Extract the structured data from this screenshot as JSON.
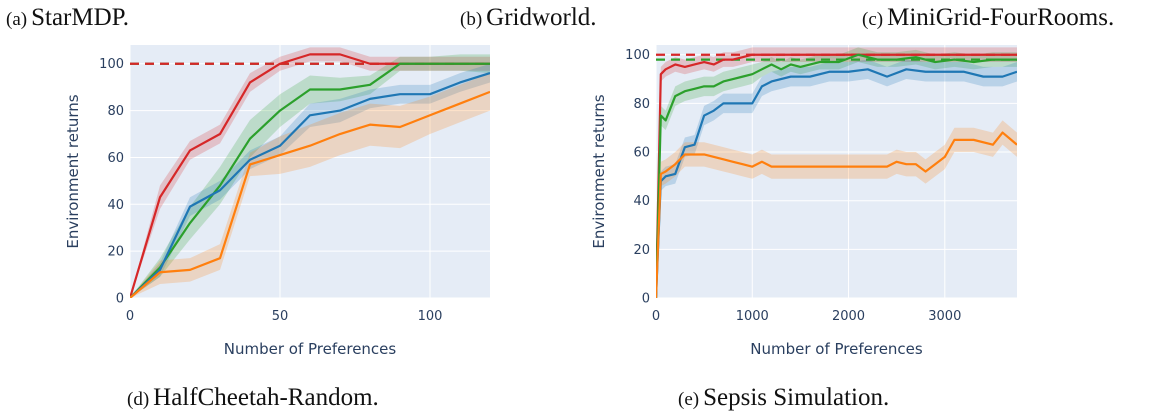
{
  "captions": {
    "a": {
      "label": "(a)",
      "text": "StarMDP."
    },
    "b": {
      "label": "(b)",
      "text": "Gridworld."
    },
    "c": {
      "label": "(c)",
      "text": "MiniGrid-FourRooms."
    },
    "d": {
      "label": "(d)",
      "text": "HalfCheetah-Random."
    },
    "e": {
      "label": "(e)",
      "text": "Sepsis Simulation."
    }
  },
  "colors": {
    "plot_bg": "#e5ecf6",
    "grid": "#ffffff",
    "axis_text": "#2a3f5f",
    "red": "#d62728",
    "green": "#2ca02c",
    "blue": "#1f77b4",
    "orange": "#ff7f0e"
  },
  "chart_data": [
    {
      "type": "line",
      "title": "HalfCheetah-Random.",
      "xlabel": "Number of Preferences",
      "ylabel": "Environment returns",
      "xlim": [
        0,
        120
      ],
      "ylim": [
        0,
        108
      ],
      "xticks": [
        0,
        50,
        100
      ],
      "yticks": [
        0,
        20,
        40,
        60,
        80,
        100
      ],
      "grid": true,
      "reference_lines": [
        {
          "y": 100,
          "color": "#2ca02c",
          "dash": true
        },
        {
          "y": 100,
          "color": "#d62728",
          "dash": true
        }
      ],
      "series": [
        {
          "name": "red",
          "color": "#d62728",
          "x": [
            0,
            10,
            20,
            30,
            40,
            50,
            60,
            70,
            80,
            90,
            100,
            110,
            120
          ],
          "y": [
            0,
            43,
            63,
            70,
            92,
            100,
            104,
            104,
            100,
            100,
            100,
            100,
            100
          ],
          "band": [
            [
              0,
              0
            ],
            [
              38,
              48
            ],
            [
              59,
              67
            ],
            [
              66,
              74
            ],
            [
              88,
              96
            ],
            [
              97,
              103
            ],
            [
              101,
              107
            ],
            [
              101,
              107
            ],
            [
              97,
              103
            ],
            [
              97,
              103
            ],
            [
              97,
              103
            ],
            [
              97,
              103
            ],
            [
              97,
              103
            ]
          ]
        },
        {
          "name": "green",
          "color": "#2ca02c",
          "x": [
            0,
            10,
            20,
            30,
            40,
            50,
            60,
            70,
            80,
            90,
            100,
            110,
            120
          ],
          "y": [
            0,
            13,
            32,
            48,
            68,
            80,
            89,
            89,
            91,
            100,
            100,
            100,
            100
          ],
          "band": [
            [
              0,
              0
            ],
            [
              9,
              17
            ],
            [
              25,
              39
            ],
            [
              40,
              56
            ],
            [
              60,
              76
            ],
            [
              73,
              87
            ],
            [
              83,
              95
            ],
            [
              84,
              94
            ],
            [
              87,
              95
            ],
            [
              97,
              103
            ],
            [
              97,
              103
            ],
            [
              97,
              104
            ],
            [
              96,
              104
            ]
          ]
        },
        {
          "name": "blue",
          "color": "#1f77b4",
          "x": [
            0,
            10,
            20,
            30,
            40,
            50,
            60,
            70,
            80,
            90,
            100,
            110,
            120
          ],
          "y": [
            0,
            12,
            39,
            46,
            59,
            65,
            78,
            80,
            85,
            87,
            87,
            92,
            96
          ],
          "band": [
            [
              0,
              0
            ],
            [
              9,
              15
            ],
            [
              35,
              43
            ],
            [
              42,
              50
            ],
            [
              55,
              63
            ],
            [
              61,
              69
            ],
            [
              73,
              83
            ],
            [
              75,
              85
            ],
            [
              81,
              89
            ],
            [
              83,
              91
            ],
            [
              83,
              91
            ],
            [
              88,
              96
            ],
            [
              92,
              100
            ]
          ]
        },
        {
          "name": "orange",
          "color": "#ff7f0e",
          "x": [
            0,
            10,
            20,
            30,
            40,
            50,
            60,
            70,
            80,
            90,
            100,
            110,
            120
          ],
          "y": [
            0,
            11,
            12,
            17,
            57,
            61,
            65,
            70,
            74,
            73,
            78,
            83,
            88
          ],
          "band": [
            [
              0,
              0
            ],
            [
              6,
              16
            ],
            [
              7,
              17
            ],
            [
              12,
              23
            ],
            [
              52,
              62
            ],
            [
              53,
              69
            ],
            [
              56,
              74
            ],
            [
              61,
              79
            ],
            [
              65,
              83
            ],
            [
              64,
              82
            ],
            [
              70,
              86
            ],
            [
              75,
              91
            ],
            [
              80,
              96
            ]
          ]
        }
      ]
    },
    {
      "type": "line",
      "title": "Sepsis Simulation.",
      "xlabel": "Number of Preferences",
      "ylabel": "Environment returns",
      "xlim": [
        0,
        3750
      ],
      "ylim": [
        0,
        104
      ],
      "xticks": [
        0,
        1000,
        2000,
        3000
      ],
      "yticks": [
        0,
        20,
        40,
        60,
        80,
        100
      ],
      "grid": true,
      "reference_lines": [
        {
          "y": 100,
          "color": "#d62728",
          "dash": true
        },
        {
          "y": 98,
          "color": "#2ca02c",
          "dash": true
        }
      ],
      "series": [
        {
          "name": "red",
          "color": "#d62728",
          "x": [
            0,
            50,
            100,
            200,
            300,
            400,
            500,
            600,
            700,
            800,
            900,
            1000,
            1500,
            2000,
            2500,
            3000,
            3500,
            3750
          ],
          "y": [
            0,
            92,
            94,
            96,
            95,
            96,
            97,
            96,
            98,
            98,
            99,
            100,
            100,
            100,
            100,
            100,
            100,
            100
          ],
          "band": [
            [
              0,
              0
            ],
            [
              89,
              95
            ],
            [
              91,
              97
            ],
            [
              93,
              99
            ],
            [
              92,
              98
            ],
            [
              93,
              99
            ],
            [
              94,
              100
            ],
            [
              93,
              99
            ],
            [
              95,
              101
            ],
            [
              95,
              101
            ],
            [
              96,
              102
            ],
            [
              97,
              103
            ],
            [
              97,
              103
            ],
            [
              97,
              103
            ],
            [
              97,
              103
            ],
            [
              97,
              103
            ],
            [
              97,
              103
            ],
            [
              97,
              103
            ]
          ]
        },
        {
          "name": "green",
          "color": "#2ca02c",
          "x": [
            0,
            50,
            100,
            200,
            300,
            400,
            500,
            600,
            700,
            800,
            900,
            1000,
            1100,
            1200,
            1300,
            1400,
            1500,
            1700,
            1900,
            2100,
            2300,
            2500,
            2700,
            2900,
            3100,
            3300,
            3500,
            3750
          ],
          "y": [
            0,
            75,
            73,
            83,
            85,
            86,
            87,
            87,
            89,
            90,
            91,
            92,
            94,
            96,
            94,
            96,
            95,
            97,
            97,
            100,
            98,
            98,
            99,
            97,
            98,
            97,
            98,
            98
          ],
          "band": [
            [
              0,
              0
            ],
            [
              71,
              79
            ],
            [
              69,
              77
            ],
            [
              79,
              87
            ],
            [
              81,
              89
            ],
            [
              82,
              90
            ],
            [
              83,
              91
            ],
            [
              83,
              91
            ],
            [
              85,
              93
            ],
            [
              86,
              94
            ],
            [
              87,
              95
            ],
            [
              88,
              96
            ],
            [
              91,
              97
            ],
            [
              93,
              99
            ],
            [
              91,
              97
            ],
            [
              93,
              99
            ],
            [
              92,
              98
            ],
            [
              94,
              100
            ],
            [
              94,
              100
            ],
            [
              97,
              103
            ],
            [
              95,
              101
            ],
            [
              95,
              101
            ],
            [
              96,
              102
            ],
            [
              94,
              100
            ],
            [
              95,
              101
            ],
            [
              94,
              100
            ],
            [
              95,
              101
            ],
            [
              95,
              101
            ]
          ]
        },
        {
          "name": "blue",
          "color": "#1f77b4",
          "x": [
            0,
            50,
            100,
            200,
            300,
            400,
            500,
            600,
            700,
            800,
            900,
            1000,
            1100,
            1200,
            1400,
            1600,
            1800,
            2000,
            2200,
            2400,
            2600,
            2800,
            3000,
            3200,
            3400,
            3600,
            3750
          ],
          "y": [
            0,
            48,
            50,
            51,
            62,
            63,
            75,
            77,
            80,
            80,
            80,
            80,
            87,
            89,
            91,
            91,
            93,
            93,
            94,
            91,
            94,
            93,
            93,
            93,
            91,
            91,
            93
          ],
          "band": [
            [
              0,
              0
            ],
            [
              44,
              52
            ],
            [
              46,
              54
            ],
            [
              47,
              55
            ],
            [
              58,
              66
            ],
            [
              59,
              67
            ],
            [
              71,
              79
            ],
            [
              73,
              81
            ],
            [
              76,
              84
            ],
            [
              76,
              84
            ],
            [
              76,
              84
            ],
            [
              76,
              84
            ],
            [
              83,
              91
            ],
            [
              85,
              93
            ],
            [
              87,
              95
            ],
            [
              87,
              95
            ],
            [
              89,
              97
            ],
            [
              89,
              97
            ],
            [
              90,
              98
            ],
            [
              87,
              95
            ],
            [
              90,
              98
            ],
            [
              89,
              97
            ],
            [
              89,
              97
            ],
            [
              89,
              97
            ],
            [
              87,
              95
            ],
            [
              87,
              95
            ],
            [
              89,
              97
            ]
          ]
        },
        {
          "name": "orange",
          "color": "#ff7f0e",
          "x": [
            0,
            50,
            100,
            200,
            300,
            500,
            700,
            800,
            900,
            1000,
            1100,
            1200,
            1500,
            2000,
            2400,
            2500,
            2600,
            2700,
            2800,
            2900,
            3000,
            3100,
            3300,
            3500,
            3600,
            3750
          ],
          "y": [
            0,
            51,
            52,
            55,
            59,
            59,
            57,
            56,
            55,
            54,
            56,
            54,
            54,
            54,
            54,
            56,
            55,
            55,
            52,
            55,
            58,
            65,
            65,
            63,
            68,
            63
          ],
          "band": [
            [
              0,
              0
            ],
            [
              46,
              56
            ],
            [
              47,
              57
            ],
            [
              50,
              60
            ],
            [
              54,
              64
            ],
            [
              54,
              64
            ],
            [
              52,
              62
            ],
            [
              51,
              61
            ],
            [
              50,
              60
            ],
            [
              49,
              59
            ],
            [
              51,
              61
            ],
            [
              49,
              59
            ],
            [
              49,
              59
            ],
            [
              49,
              59
            ],
            [
              49,
              59
            ],
            [
              51,
              61
            ],
            [
              50,
              60
            ],
            [
              50,
              60
            ],
            [
              47,
              57
            ],
            [
              50,
              60
            ],
            [
              53,
              63
            ],
            [
              60,
              70
            ],
            [
              60,
              70
            ],
            [
              58,
              68
            ],
            [
              63,
              73
            ],
            [
              58,
              68
            ]
          ]
        }
      ]
    }
  ]
}
